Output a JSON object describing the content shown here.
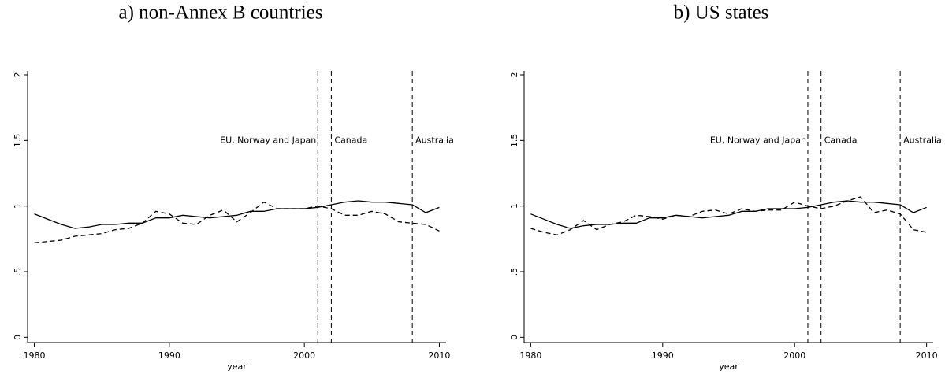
{
  "chart_data": [
    {
      "type": "line",
      "title": "a) non-Annex B countries",
      "xlabel": "year",
      "x": [
        1980,
        1981,
        1982,
        1983,
        1984,
        1985,
        1986,
        1987,
        1988,
        1989,
        1990,
        1991,
        1992,
        1993,
        1994,
        1995,
        1996,
        1997,
        1998,
        1999,
        2000,
        2001,
        2002,
        2003,
        2004,
        2005,
        2006,
        2007,
        2008,
        2009,
        2010
      ],
      "series": [
        {
          "color": "#000000",
          "dash": false,
          "values": [
            0.94,
            0.9,
            0.86,
            0.83,
            0.84,
            0.86,
            0.86,
            0.87,
            0.87,
            0.91,
            0.91,
            0.93,
            0.92,
            0.91,
            0.92,
            0.93,
            0.96,
            0.96,
            0.98,
            0.98,
            0.98,
            0.99,
            1.01,
            1.03,
            1.04,
            1.03,
            1.03,
            1.02,
            1.01,
            0.95,
            0.99
          ]
        },
        {
          "color": "#000000",
          "dash": true,
          "values": [
            0.72,
            0.73,
            0.74,
            0.77,
            0.78,
            0.79,
            0.82,
            0.83,
            0.87,
            0.96,
            0.94,
            0.87,
            0.86,
            0.93,
            0.97,
            0.88,
            0.95,
            1.03,
            0.98,
            0.98,
            0.98,
            1.0,
            0.98,
            0.93,
            0.93,
            0.96,
            0.94,
            0.88,
            0.87,
            0.86,
            0.81
          ]
        }
      ],
      "vlines": [
        {
          "x": 2001,
          "label": "EU, Norway and Japan"
        },
        {
          "x": 2002,
          "label": "Canada"
        },
        {
          "x": 2008,
          "label": "Australia"
        }
      ],
      "xlim": [
        1979.5,
        2010.5
      ],
      "xticks": [
        1980,
        1990,
        2000,
        2010
      ],
      "ylim": [
        -0.04,
        2.03
      ],
      "yticks": [
        0,
        {
          "value": 0.5,
          "label": ".5"
        },
        1,
        1.5,
        2
      ],
      "grid": false
    },
    {
      "type": "line",
      "title": "b) US states",
      "xlabel": "year",
      "x": [
        1980,
        1981,
        1982,
        1983,
        1984,
        1985,
        1986,
        1987,
        1988,
        1989,
        1990,
        1991,
        1992,
        1993,
        1994,
        1995,
        1996,
        1997,
        1998,
        1999,
        2000,
        2001,
        2002,
        2003,
        2004,
        2005,
        2006,
        2007,
        2008,
        2009,
        2010
      ],
      "series": [
        {
          "color": "#000000",
          "dash": false,
          "values": [
            0.94,
            0.9,
            0.86,
            0.83,
            0.85,
            0.86,
            0.86,
            0.87,
            0.87,
            0.91,
            0.91,
            0.93,
            0.92,
            0.91,
            0.92,
            0.93,
            0.96,
            0.96,
            0.98,
            0.98,
            0.98,
            0.99,
            1.01,
            1.03,
            1.04,
            1.03,
            1.03,
            1.02,
            1.01,
            0.95,
            0.99
          ]
        },
        {
          "color": "#000000",
          "dash": true,
          "values": [
            0.83,
            0.8,
            0.78,
            0.82,
            0.89,
            0.82,
            0.86,
            0.88,
            0.93,
            0.92,
            0.9,
            0.93,
            0.92,
            0.96,
            0.97,
            0.94,
            0.98,
            0.96,
            0.97,
            0.97,
            1.03,
            1.0,
            0.98,
            1.0,
            1.04,
            1.07,
            0.95,
            0.97,
            0.94,
            0.82,
            0.8
          ]
        }
      ],
      "vlines": [
        {
          "x": 2001,
          "label": "EU, Norway and Japan"
        },
        {
          "x": 2002,
          "label": "Canada"
        },
        {
          "x": 2008,
          "label": "Australia"
        }
      ],
      "xlim": [
        1979.5,
        2010.5
      ],
      "xticks": [
        1980,
        1990,
        2000,
        2010
      ],
      "ylim": [
        -0.04,
        2.03
      ],
      "yticks": [
        0,
        {
          "value": 0.5,
          "label": ".5"
        },
        1,
        1.5,
        2
      ],
      "grid": false
    }
  ]
}
